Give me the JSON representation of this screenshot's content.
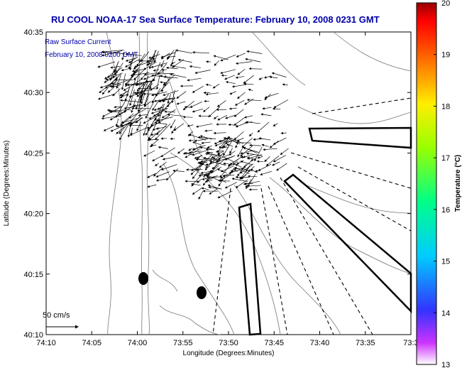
{
  "title": "RU COOL  NOAA-17  Sea Surface Temperature:  February 10, 2008 0231 GMT",
  "legend": {
    "line1": "Raw Surface Current",
    "line2": "February 10, 2008 0200 GMT"
  },
  "scale_label": "50 cm/s",
  "axes": {
    "xlabel": "Longitude (Degrees:Minutes)",
    "ylabel": "Latitude (Degrees:Minutes)",
    "xticks": [
      "74:10",
      "74:05",
      "74:00",
      "73:55",
      "73:50",
      "73:45",
      "73:40",
      "73:35",
      "73:3"
    ],
    "yticks": [
      "40:35",
      "40:30",
      "40:25",
      "40:20",
      "40:15",
      "40:10"
    ]
  },
  "colorbar": {
    "title": "Temperature (°C)",
    "ticks": [
      "20",
      "19",
      "18",
      "17",
      "16",
      "15",
      "14",
      "13"
    ],
    "min": 13,
    "max": 20
  },
  "chart_data": {
    "type": "map",
    "title": "RU COOL  NOAA-17  Sea Surface Temperature:  February 10, 2008 0231 GMT",
    "xlabel": "Longitude (Degrees:Minutes)",
    "ylabel": "Latitude (Degrees:Minutes)",
    "x_range": [
      "74:10",
      "73:30"
    ],
    "y_range": [
      "40:10",
      "40:35"
    ],
    "colorbar_range": [
      13,
      20
    ],
    "colorbar_units": "°C",
    "current_scale": "50 cm/s"
  }
}
